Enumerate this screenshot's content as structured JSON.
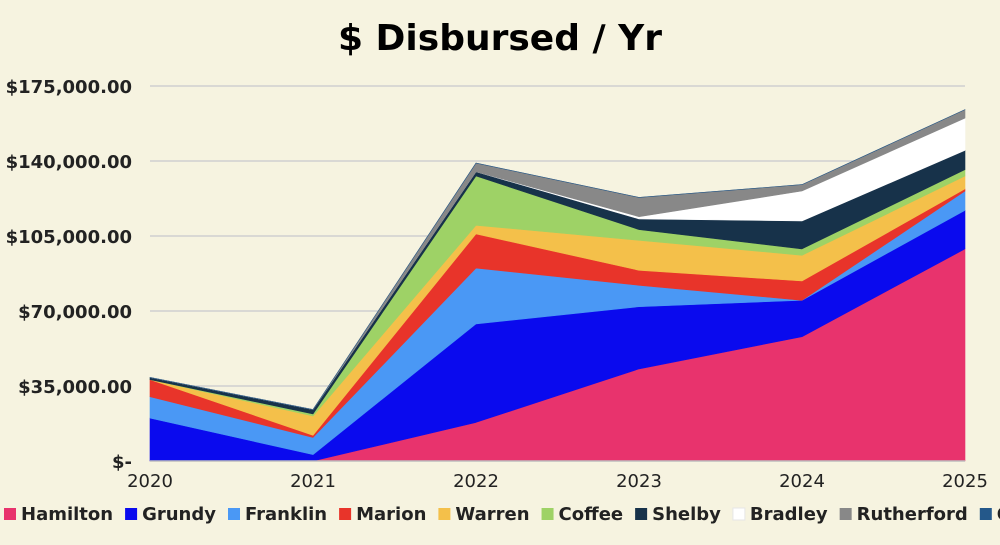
{
  "chart_data": {
    "type": "area",
    "stacked": true,
    "title": "$ Disbursed / Yr",
    "xlabel": "",
    "ylabel": "",
    "x": [
      "2020",
      "2021",
      "2022",
      "2023",
      "2024",
      "2025"
    ],
    "ylim": [
      0,
      175000
    ],
    "yticks": [
      0,
      35000,
      70000,
      105000,
      140000,
      175000
    ],
    "ytick_labels": [
      "$-",
      "$35,000.00",
      "$70,000.00",
      "$105,000.00",
      "$140,000.00",
      "$175,000.00"
    ],
    "grid": "horizontal",
    "legend": "bottom",
    "series": [
      {
        "name": "Hamilton",
        "color": "#e8336d",
        "values": [
          0,
          0,
          18000,
          43000,
          58000,
          99000
        ]
      },
      {
        "name": "Grundy",
        "color": "#0a0aee",
        "values": [
          20000,
          3000,
          46000,
          29000,
          17000,
          18000
        ]
      },
      {
        "name": "Franklin",
        "color": "#4a98f5",
        "values": [
          10000,
          8000,
          26000,
          10000,
          0,
          9000
        ]
      },
      {
        "name": "Marion",
        "color": "#e8342a",
        "values": [
          8000,
          1000,
          16000,
          7000,
          9000,
          1000
        ]
      },
      {
        "name": "Warren",
        "color": "#f4c04a",
        "values": [
          0,
          9000,
          4000,
          14000,
          12000,
          6000
        ]
      },
      {
        "name": "Coffee",
        "color": "#9ed266",
        "values": [
          0,
          1000,
          23000,
          5000,
          3000,
          3000
        ]
      },
      {
        "name": "Shelby",
        "color": "#17324a",
        "values": [
          1000,
          2000,
          2000,
          5000,
          13000,
          9000
        ]
      },
      {
        "name": "Bradley",
        "color": "#ffffff",
        "values": [
          0,
          0,
          0,
          1000,
          14000,
          15000
        ]
      },
      {
        "name": "Rutherford",
        "color": "#888888",
        "values": [
          0,
          0,
          4000,
          9000,
          3000,
          4000
        ]
      },
      {
        "name": "Other",
        "color": "#24588a",
        "values": [
          0,
          0,
          0,
          0,
          0,
          0
        ]
      }
    ]
  }
}
